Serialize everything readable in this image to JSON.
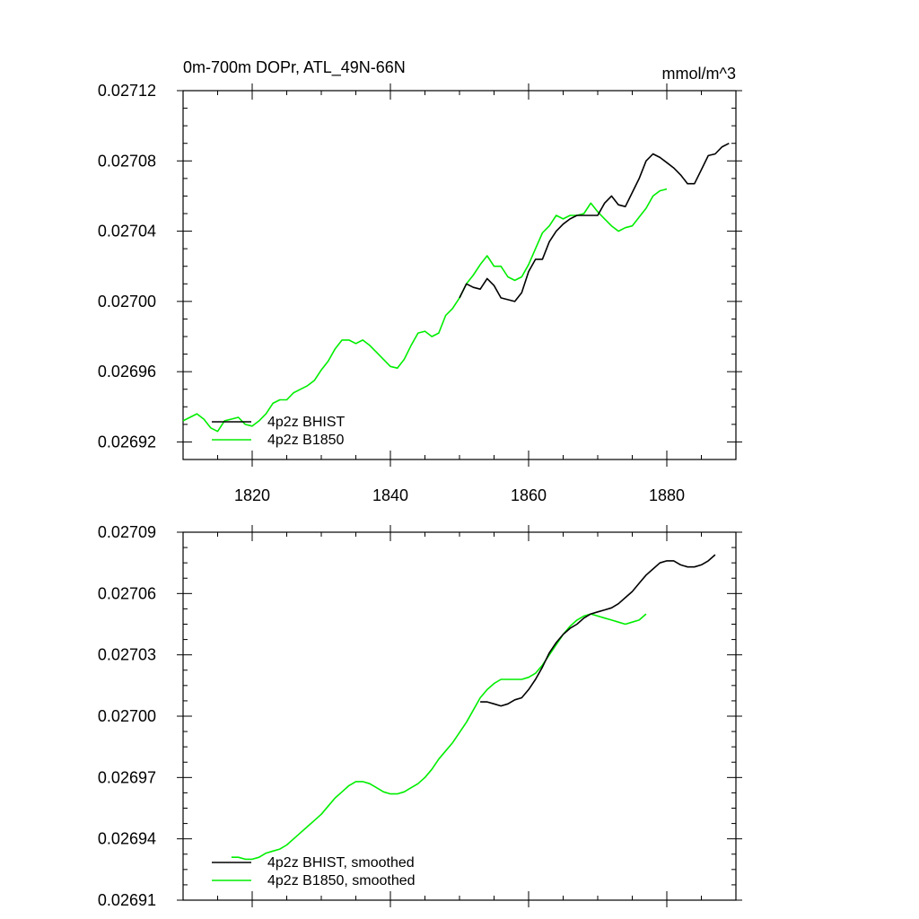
{
  "colors": {
    "bhist": "#000000",
    "b1850": "#00ee00",
    "axis": "#000000"
  },
  "chart_data": [
    {
      "type": "line",
      "title_left": "0m-700m DOPr, ATL_49N-66N",
      "title_right": "mmol/m^3",
      "xlim": [
        1810,
        1890
      ],
      "ylim": [
        0.02691,
        0.02712
      ],
      "xticks": [
        1820,
        1840,
        1860,
        1880
      ],
      "xtick_labels": [
        "1820",
        "1840",
        "1860",
        "1880"
      ],
      "yticks": [
        0.02692,
        0.02696,
        0.027,
        0.02704,
        0.02708,
        0.02712
      ],
      "ytick_labels": [
        "0.02692",
        "0.02696",
        "0.02700",
        "0.02704",
        "0.02708",
        "0.02712"
      ],
      "legend": [
        "4p2z BHIST",
        "4p2z B1850"
      ],
      "series": [
        {
          "name": "4p2z BHIST",
          "color": "black",
          "x": [
            1850,
            1851,
            1852,
            1853,
            1854,
            1855,
            1856,
            1857,
            1858,
            1859,
            1860,
            1861,
            1862,
            1863,
            1864,
            1865,
            1866,
            1867,
            1868,
            1869,
            1870,
            1871,
            1872,
            1873,
            1874,
            1875,
            1876,
            1877,
            1878,
            1879,
            1880,
            1881,
            1882,
            1883,
            1884,
            1885,
            1886,
            1887,
            1888,
            1889
          ],
          "y": [
            0.027002,
            0.02701,
            0.027008,
            0.027007,
            0.027013,
            0.027009,
            0.027002,
            0.027001,
            0.027,
            0.027005,
            0.027017,
            0.027024,
            0.027024,
            0.027034,
            0.02704,
            0.027044,
            0.027047,
            0.027049,
            0.027049,
            0.027049,
            0.027049,
            0.027056,
            0.02706,
            0.027055,
            0.027054,
            0.027062,
            0.02707,
            0.02708,
            0.027084,
            0.027082,
            0.027079,
            0.027076,
            0.027072,
            0.027067,
            0.027067,
            0.027075,
            0.027083,
            0.027084,
            0.027088,
            0.02709
          ]
        },
        {
          "name": "4p2z B1850",
          "color": "green",
          "x": [
            1810,
            1811,
            1812,
            1813,
            1814,
            1815,
            1816,
            1817,
            1818,
            1819,
            1820,
            1821,
            1822,
            1823,
            1824,
            1825,
            1826,
            1827,
            1828,
            1829,
            1830,
            1831,
            1832,
            1833,
            1834,
            1835,
            1836,
            1837,
            1838,
            1839,
            1840,
            1841,
            1842,
            1843,
            1844,
            1845,
            1846,
            1847,
            1848,
            1849,
            1850,
            1851,
            1852,
            1853,
            1854,
            1855,
            1856,
            1857,
            1858,
            1859,
            1860,
            1861,
            1862,
            1863,
            1864,
            1865,
            1866,
            1867,
            1868,
            1869,
            1870,
            1871,
            1872,
            1873,
            1874,
            1875,
            1876,
            1877,
            1878,
            1879,
            1880
          ],
          "y": [
            0.026932,
            0.026934,
            0.026936,
            0.026933,
            0.026928,
            0.026926,
            0.026932,
            0.026933,
            0.026934,
            0.02693,
            0.026929,
            0.026932,
            0.026936,
            0.026942,
            0.026944,
            0.026944,
            0.026948,
            0.02695,
            0.026952,
            0.026955,
            0.026961,
            0.026966,
            0.026973,
            0.026978,
            0.026978,
            0.026976,
            0.026978,
            0.026975,
            0.026971,
            0.026967,
            0.026963,
            0.026962,
            0.026967,
            0.026975,
            0.026982,
            0.026983,
            0.02698,
            0.026982,
            0.026992,
            0.026996,
            0.027002,
            0.02701,
            0.027015,
            0.027021,
            0.027026,
            0.02702,
            0.02702,
            0.027014,
            0.027012,
            0.027014,
            0.027021,
            0.02703,
            0.027039,
            0.027043,
            0.027049,
            0.027047,
            0.027049,
            0.027049,
            0.02705,
            0.027056,
            0.027051,
            0.027047,
            0.027043,
            0.02704,
            0.027042,
            0.027043,
            0.027048,
            0.027053,
            0.02706,
            0.027063,
            0.027064
          ]
        }
      ]
    },
    {
      "type": "line",
      "xlim": [
        1810,
        1890
      ],
      "ylim": [
        0.02691,
        0.02709
      ],
      "xticks": [
        1820,
        1840,
        1860,
        1880
      ],
      "yticks": [
        0.02691,
        0.02694,
        0.02697,
        0.027,
        0.02703,
        0.02706,
        0.02709
      ],
      "ytick_labels": [
        "0.02691",
        "0.02694",
        "0.02697",
        "0.02700",
        "0.02703",
        "0.02706",
        "0.02709"
      ],
      "legend": [
        "4p2z BHIST, smoothed",
        "4p2z B1850, smoothed"
      ],
      "series": [
        {
          "name": "4p2z BHIST, smoothed",
          "color": "black",
          "x": [
            1853,
            1854,
            1855,
            1856,
            1857,
            1858,
            1859,
            1860,
            1861,
            1862,
            1863,
            1864,
            1865,
            1866,
            1867,
            1868,
            1869,
            1870,
            1871,
            1872,
            1873,
            1874,
            1875,
            1876,
            1877,
            1878,
            1879,
            1880,
            1881,
            1882,
            1883,
            1884,
            1885,
            1886,
            1887
          ],
          "y": [
            0.027007,
            0.027007,
            0.027006,
            0.027005,
            0.027006,
            0.027008,
            0.027009,
            0.027013,
            0.027018,
            0.027024,
            0.027031,
            0.027036,
            0.02704,
            0.027043,
            0.027045,
            0.027048,
            0.02705,
            0.027051,
            0.027052,
            0.027053,
            0.027055,
            0.027058,
            0.027061,
            0.027065,
            0.027069,
            0.027072,
            0.027075,
            0.027076,
            0.027076,
            0.027074,
            0.027073,
            0.027073,
            0.027074,
            0.027076,
            0.027079
          ]
        },
        {
          "name": "4p2z B1850, smoothed",
          "color": "green",
          "x": [
            1817,
            1818,
            1819,
            1820,
            1821,
            1822,
            1823,
            1824,
            1825,
            1826,
            1827,
            1828,
            1829,
            1830,
            1831,
            1832,
            1833,
            1834,
            1835,
            1836,
            1837,
            1838,
            1839,
            1840,
            1841,
            1842,
            1843,
            1844,
            1845,
            1846,
            1847,
            1848,
            1849,
            1850,
            1851,
            1852,
            1853,
            1854,
            1855,
            1856,
            1857,
            1858,
            1859,
            1860,
            1861,
            1862,
            1863,
            1864,
            1865,
            1866,
            1867,
            1868,
            1869,
            1870,
            1871,
            1872,
            1873,
            1874,
            1875,
            1876,
            1877
          ],
          "y": [
            0.026931,
            0.026931,
            0.02693,
            0.02693,
            0.026931,
            0.026933,
            0.026934,
            0.026935,
            0.026937,
            0.02694,
            0.026943,
            0.026946,
            0.026949,
            0.026952,
            0.026956,
            0.02696,
            0.026963,
            0.026966,
            0.026968,
            0.026968,
            0.026967,
            0.026965,
            0.026963,
            0.026962,
            0.026962,
            0.026963,
            0.026965,
            0.026967,
            0.02697,
            0.026974,
            0.026979,
            0.026983,
            0.026987,
            0.026992,
            0.026997,
            0.027003,
            0.027009,
            0.027013,
            0.027016,
            0.027018,
            0.027018,
            0.027018,
            0.027018,
            0.027019,
            0.027021,
            0.027025,
            0.02703,
            0.027035,
            0.02704,
            0.027044,
            0.027047,
            0.027049,
            0.02705,
            0.027049,
            0.027048,
            0.027047,
            0.027046,
            0.027045,
            0.027046,
            0.027047,
            0.02705
          ]
        }
      ]
    }
  ]
}
